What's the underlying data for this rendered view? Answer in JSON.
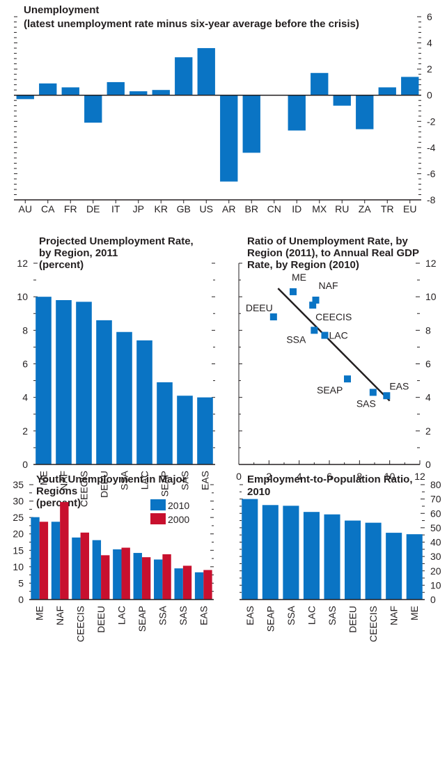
{
  "colors": {
    "bar": "#0a74c4",
    "bar2": "#c8102e",
    "axis": "#231f20",
    "text": "#231f20"
  },
  "chart_data": [
    {
      "id": "unemployment",
      "type": "bar",
      "title": [
        "Unemployment",
        "(latest unemployment rate minus six-year average before the crisis)"
      ],
      "categories": [
        "AU",
        "CA",
        "FR",
        "DE",
        "IT",
        "JP",
        "KR",
        "GB",
        "US",
        "AR",
        "BR",
        "CN",
        "ID",
        "MX",
        "RU",
        "ZA",
        "TR",
        "EU"
      ],
      "values": [
        -0.3,
        0.9,
        0.6,
        -2.1,
        1.0,
        0.3,
        0.4,
        2.9,
        3.6,
        -6.6,
        -4.4,
        0.0,
        -2.7,
        1.7,
        -0.8,
        -2.6,
        0.6,
        1.4
      ],
      "ylim": [
        -8,
        6
      ],
      "y_ticks": [
        -8,
        -6,
        -4,
        -2,
        0,
        2,
        4,
        6
      ],
      "y_axis_side": "right",
      "grid": false
    },
    {
      "id": "projected-unemployment",
      "type": "bar",
      "title": [
        "Projected Unemployment Rate,",
        "by Region, 2011",
        "(percent)"
      ],
      "categories": [
        "ME",
        "NAF",
        "CEECIS",
        "DEEU",
        "SSA",
        "LAC",
        "SEAP",
        "SAS",
        "EAS"
      ],
      "values": [
        10.0,
        9.8,
        9.7,
        8.6,
        7.9,
        7.4,
        4.9,
        4.1,
        4.0
      ],
      "ylim": [
        0,
        12
      ],
      "y_ticks": [
        0,
        2,
        4,
        6,
        8,
        10,
        12
      ],
      "y_axis_side": "left",
      "grid": false
    },
    {
      "id": "ratio-scatter",
      "type": "scatter",
      "title": [
        "Ratio of Unemployment Rate, by",
        "Region (2011), to Annual Real GDP",
        "Rate, by Region (2010)"
      ],
      "points": [
        {
          "label": "ME",
          "x": 3.6,
          "y": 10.3
        },
        {
          "label": "NAF",
          "x": 5.1,
          "y": 9.8
        },
        {
          "label": "CEECIS",
          "x": 4.9,
          "y": 9.5
        },
        {
          "label": "DEEU",
          "x": 2.3,
          "y": 8.8
        },
        {
          "label": "SSA",
          "x": 5.0,
          "y": 8.0
        },
        {
          "label": "LAC",
          "x": 5.7,
          "y": 7.7
        },
        {
          "label": "SEAP",
          "x": 7.2,
          "y": 5.1
        },
        {
          "label": "SAS",
          "x": 8.9,
          "y": 4.3
        },
        {
          "label": "EAS",
          "x": 9.8,
          "y": 4.1
        }
      ],
      "trend_line": {
        "x1": 2.6,
        "y1": 10.5,
        "x2": 10.0,
        "y2": 3.8
      },
      "xlim": [
        0,
        12
      ],
      "ylim": [
        0,
        12
      ],
      "x_ticks": [
        0,
        2,
        4,
        6,
        8,
        10,
        12
      ],
      "y_ticks": [
        0,
        2,
        4,
        6,
        8,
        10,
        12
      ],
      "y_axis_side": "right",
      "grid": false
    },
    {
      "id": "youth-unemployment",
      "type": "bar",
      "title": [
        "Youth Unemployment in Major",
        "Regions",
        "(percent)"
      ],
      "categories": [
        "ME",
        "NAF",
        "CEECIS",
        "DEEU",
        "LAC",
        "SEAP",
        "SSA",
        "SAS",
        "EAS"
      ],
      "series": [
        {
          "name": "2010",
          "values": [
            25.1,
            23.7,
            18.9,
            18.1,
            15.3,
            14.2,
            12.2,
            9.5,
            8.3
          ]
        },
        {
          "name": "2000",
          "values": [
            23.7,
            29.7,
            20.4,
            13.5,
            15.8,
            12.9,
            13.8,
            10.3,
            9.0
          ]
        }
      ],
      "ylim": [
        0,
        35
      ],
      "y_ticks": [
        0,
        5,
        10,
        15,
        20,
        25,
        30,
        35
      ],
      "y_axis_side": "left",
      "legend": "top-right",
      "grid": false
    },
    {
      "id": "employment-population",
      "type": "bar",
      "title": [
        "Employment-to-Population Ratio,",
        "2010"
      ],
      "categories": [
        "EAS",
        "SEAP",
        "SSA",
        "LAC",
        "SAS",
        "DEEU",
        "CEECIS",
        "NAF",
        "ME"
      ],
      "values": [
        70.0,
        65.8,
        65.3,
        61.0,
        59.3,
        55.0,
        53.5,
        46.5,
        45.5
      ],
      "ylim": [
        0,
        80
      ],
      "y_ticks": [
        0,
        10,
        20,
        30,
        40,
        50,
        60,
        70,
        80
      ],
      "y_axis_side": "right",
      "grid": false
    }
  ]
}
